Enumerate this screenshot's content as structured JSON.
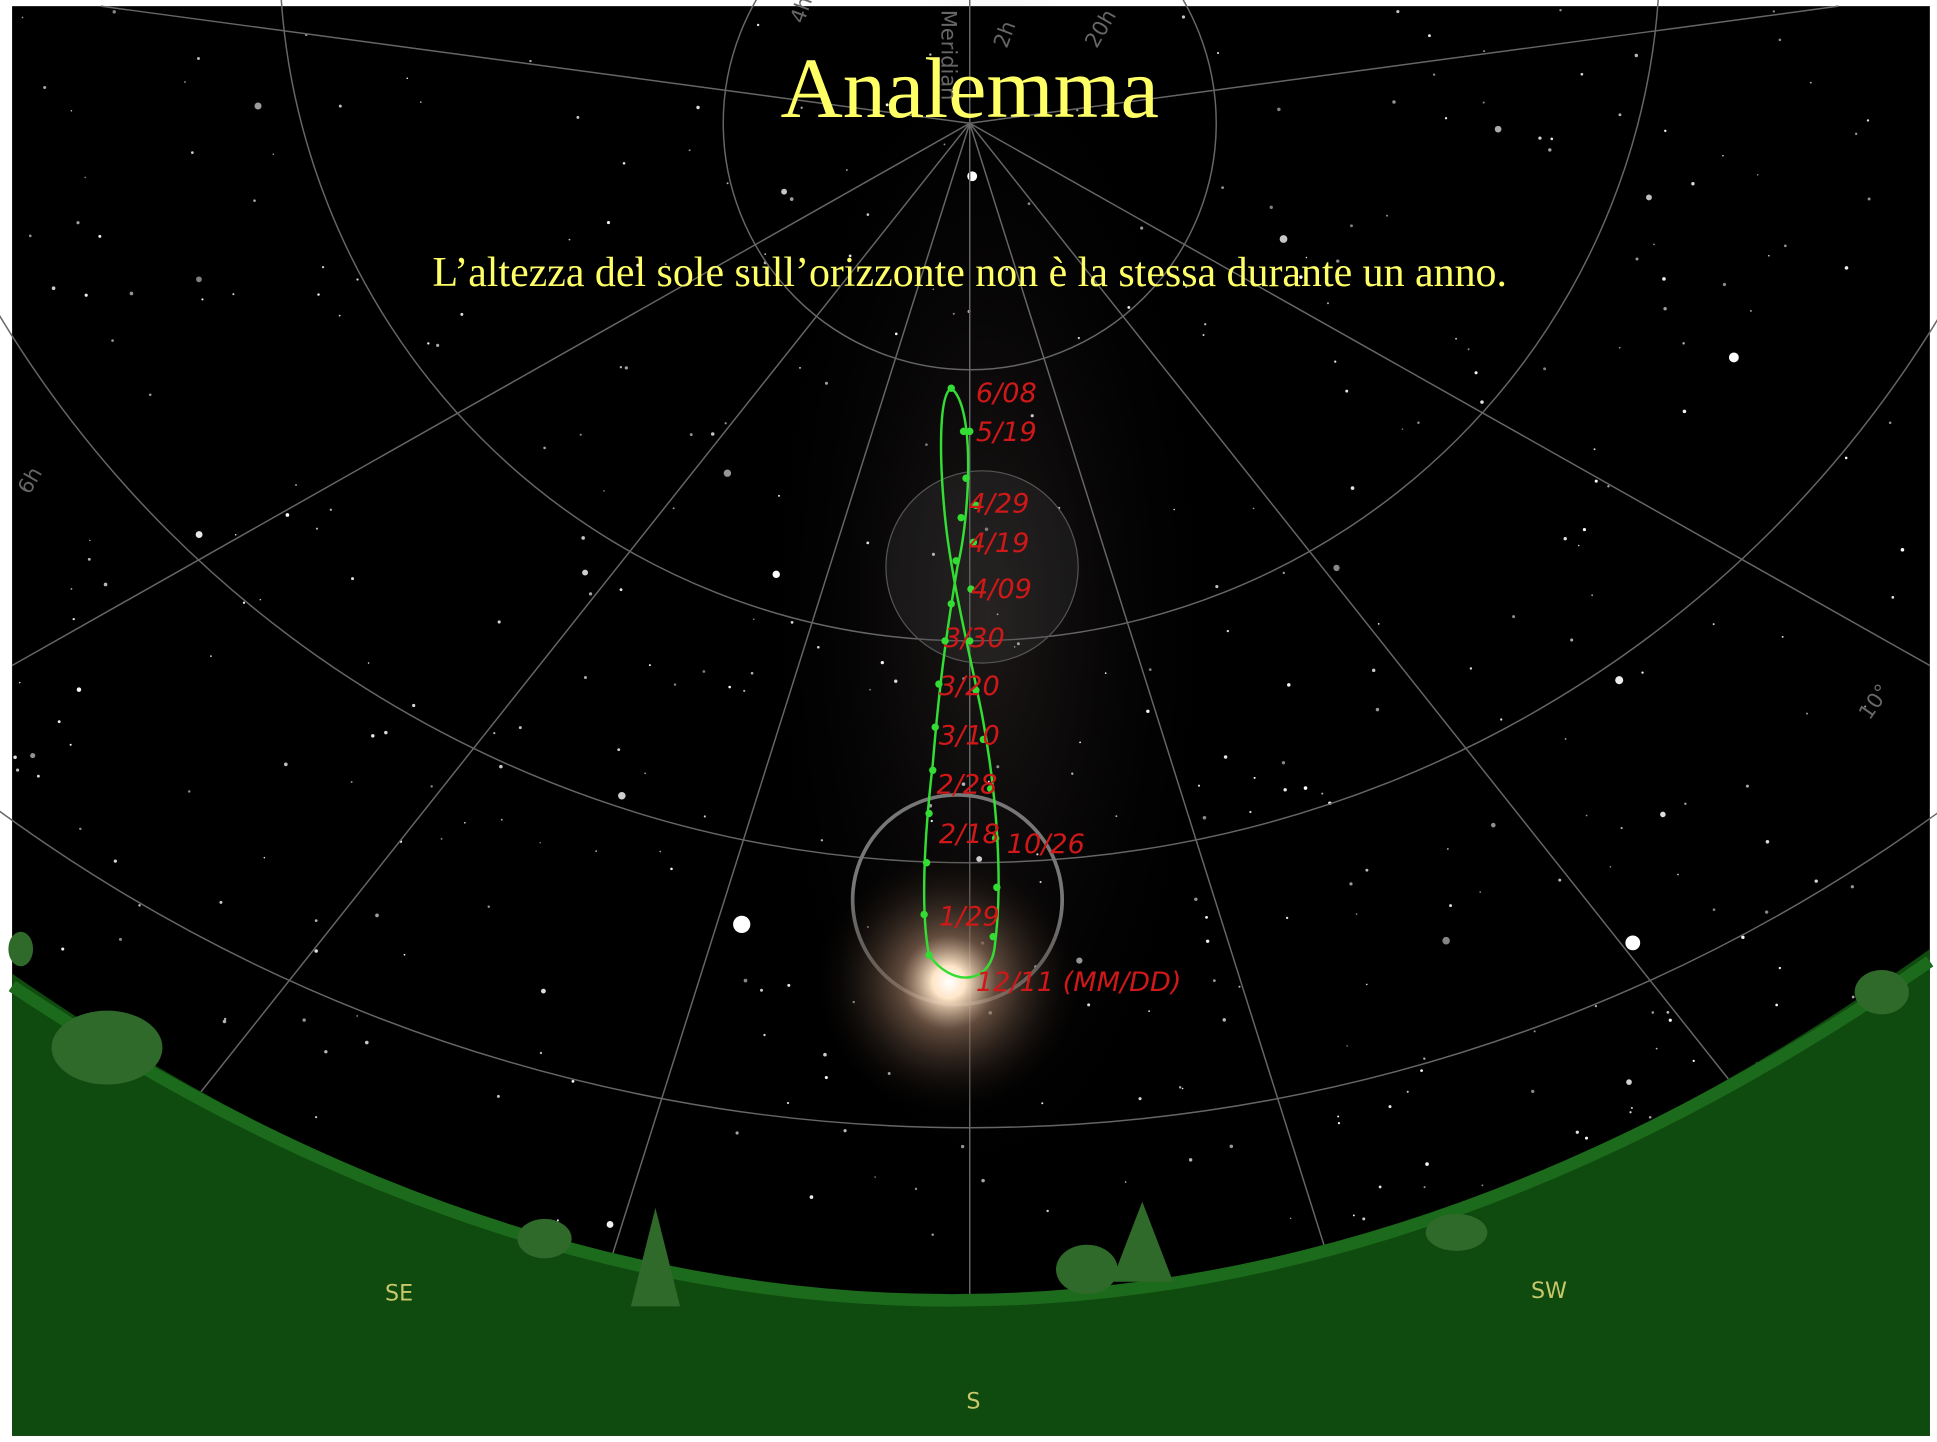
{
  "header": {
    "title": "Analemma",
    "subtitle": "L’altezza del sole sull’orizzonte non è la stessa durante un anno."
  },
  "sky_labels": [
    "Meridian",
    "4h",
    "2h",
    "20h",
    "6h",
    "10°"
  ],
  "dates": [
    "6/08",
    "5/19",
    "4/29",
    "4/19",
    "4/09",
    "3/30",
    "3/20",
    "3/10",
    "2/28",
    "2/18",
    "10/26",
    "1/29",
    "12/11 (MM/DD)"
  ],
  "compass": [
    "SE",
    "S",
    "SW"
  ]
}
